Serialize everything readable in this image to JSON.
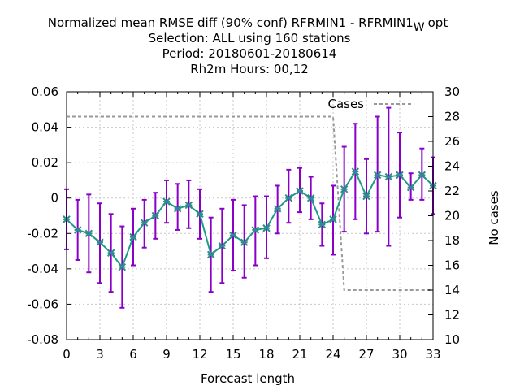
{
  "chart_data": {
    "type": "line",
    "title_lines": [
      "Normalized mean RMSE diff (90% conf) RFRMIN1 - RFRMIN1",
      "Selection: ALL using   160 stations",
      "Period: 20180601-20180614",
      "Rh2m  Hours:  00,12"
    ],
    "title_subscript": "W",
    "title_suffix": "opt",
    "xlabel": "Forecast length",
    "ylabel": "",
    "y2label": "No cases",
    "xlim": [
      0,
      33
    ],
    "ylim": [
      -0.08,
      0.06
    ],
    "y2lim": [
      10,
      30
    ],
    "x_ticks": [
      "0",
      "3",
      "6",
      "9",
      "12",
      "15",
      "18",
      "21",
      "24",
      "27",
      "30",
      "33"
    ],
    "y_ticks": [
      "-0.08",
      "-0.06",
      "-0.04",
      "-0.02",
      "0",
      "0.02",
      "0.04",
      "0.06"
    ],
    "y2_ticks": [
      "10",
      "12",
      "14",
      "16",
      "18",
      "20",
      "22",
      "24",
      "26",
      "28",
      "30"
    ],
    "grid": true,
    "legend": {
      "placement": "top-right",
      "entries": [
        "Cases"
      ]
    },
    "series": [
      {
        "axis": "left",
        "x": [
          0,
          1,
          2,
          3,
          4,
          5,
          6,
          7,
          8,
          9,
          10,
          11,
          12,
          13,
          14,
          15,
          16,
          17,
          18,
          19,
          20,
          21,
          22,
          23,
          24,
          25,
          26,
          27,
          28,
          29,
          30,
          31,
          32,
          33
        ],
        "y": [
          -0.012,
          -0.018,
          -0.02,
          -0.025,
          -0.031,
          -0.039,
          -0.022,
          -0.014,
          -0.01,
          -0.002,
          -0.006,
          -0.004,
          -0.009,
          -0.032,
          -0.027,
          -0.021,
          -0.025,
          -0.018,
          -0.017,
          -0.006,
          0.0,
          0.004,
          0.0,
          -0.015,
          -0.012,
          0.005,
          0.015,
          0.001,
          0.013,
          0.012,
          0.013,
          0.006,
          0.013,
          0.007
        ],
        "err_low": [
          -0.029,
          -0.035,
          -0.042,
          -0.048,
          -0.053,
          -0.062,
          -0.038,
          -0.028,
          -0.023,
          -0.014,
          -0.018,
          -0.017,
          -0.023,
          -0.053,
          -0.048,
          -0.041,
          -0.045,
          -0.038,
          -0.034,
          -0.02,
          -0.014,
          -0.008,
          -0.012,
          -0.027,
          -0.032,
          -0.019,
          -0.012,
          -0.02,
          -0.019,
          -0.027,
          -0.011,
          -0.001,
          -0.001,
          -0.009
        ],
        "err_high": [
          0.005,
          -0.001,
          0.002,
          -0.003,
          -0.009,
          -0.016,
          -0.006,
          -0.001,
          0.003,
          0.01,
          0.008,
          0.01,
          0.005,
          -0.011,
          -0.006,
          -0.001,
          -0.004,
          0.001,
          0.001,
          0.007,
          0.016,
          0.017,
          0.012,
          -0.003,
          0.007,
          0.029,
          0.042,
          0.022,
          0.046,
          0.051,
          0.037,
          0.014,
          0.028,
          0.023
        ]
      },
      {
        "name": "Cases",
        "axis": "right",
        "x": [
          0,
          24,
          25,
          33
        ],
        "y": [
          28,
          28,
          14,
          14
        ]
      }
    ],
    "colors": {
      "line": "#1e9b8a",
      "markers": "#2e8b8b",
      "errorbars": "#8b00c8",
      "cases": "#999999",
      "grid": "#c8c8c8"
    }
  }
}
